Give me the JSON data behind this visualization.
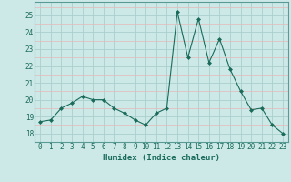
{
  "x": [
    0,
    1,
    2,
    3,
    4,
    5,
    6,
    7,
    8,
    9,
    10,
    11,
    12,
    13,
    14,
    15,
    16,
    17,
    18,
    19,
    20,
    21,
    22,
    23
  ],
  "y": [
    18.7,
    18.8,
    19.5,
    19.8,
    20.2,
    20.0,
    20.0,
    19.5,
    19.2,
    18.8,
    18.5,
    19.2,
    19.5,
    25.2,
    22.5,
    24.8,
    22.2,
    23.6,
    21.8,
    20.5,
    19.4,
    19.5,
    18.5,
    18.0
  ],
  "line_color": "#1a6b5a",
  "marker": "D",
  "marker_size": 2.0,
  "bg_color": "#cce9e8",
  "grid_major_color": "#aacfcd",
  "grid_minor_color": "#e8b8b8",
  "xlabel": "Humidex (Indice chaleur)",
  "ylim": [
    17.5,
    25.8
  ],
  "xlim": [
    -0.5,
    23.5
  ],
  "yticks": [
    18,
    19,
    20,
    21,
    22,
    23,
    24,
    25
  ],
  "xticks": [
    0,
    1,
    2,
    3,
    4,
    5,
    6,
    7,
    8,
    9,
    10,
    11,
    12,
    13,
    14,
    15,
    16,
    17,
    18,
    19,
    20,
    21,
    22,
    23
  ],
  "label_fontsize": 6.5,
  "tick_fontsize": 5.5
}
